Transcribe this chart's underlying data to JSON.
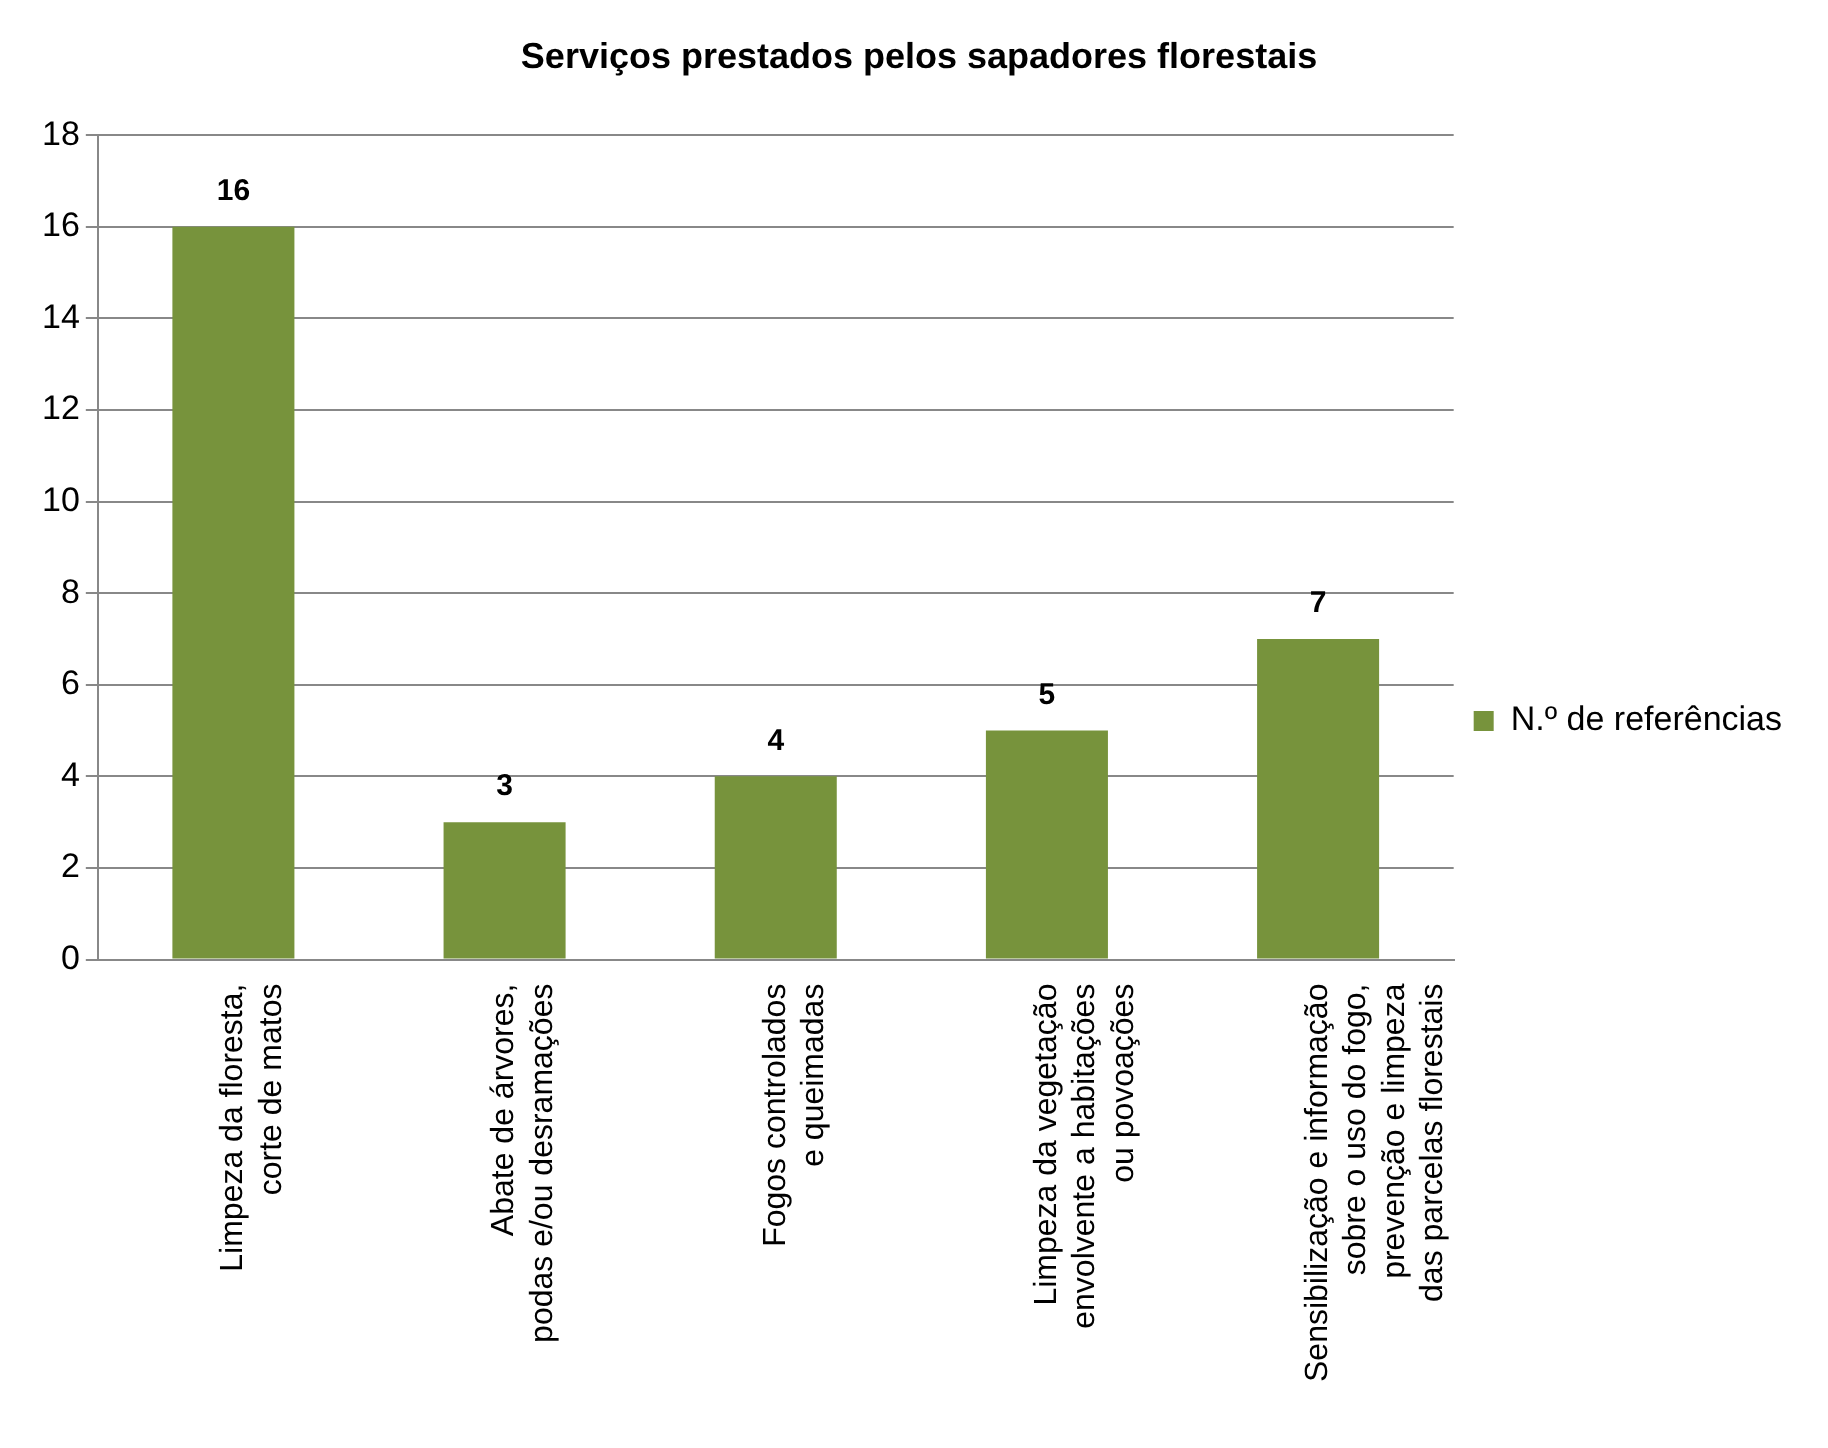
{
  "chart_data": {
    "type": "bar",
    "title": "Serviços prestados pelos sapadores florestais",
    "categories": [
      "Limpeza da floresta,\ncorte de matos",
      "Abate de árvores,\npodas e/ou desramações",
      "Fogos controlados\ne queimadas",
      "Limpeza da vegetação\nenvolvente a habitações\nou povoações",
      "Sensibilização e informação\nsobre o uso do fogo,\nprevenção e limpeza\ndas parcelas florestais"
    ],
    "series": [
      {
        "name": "N.º de referências",
        "color": "#77933c",
        "values": [
          16,
          3,
          4,
          5,
          7
        ]
      }
    ],
    "ylim": [
      0,
      18
    ],
    "yticks": [
      0,
      2,
      4,
      6,
      8,
      10,
      12,
      14,
      16,
      18
    ],
    "grid": "y",
    "legend": "right",
    "data_labels": true
  }
}
